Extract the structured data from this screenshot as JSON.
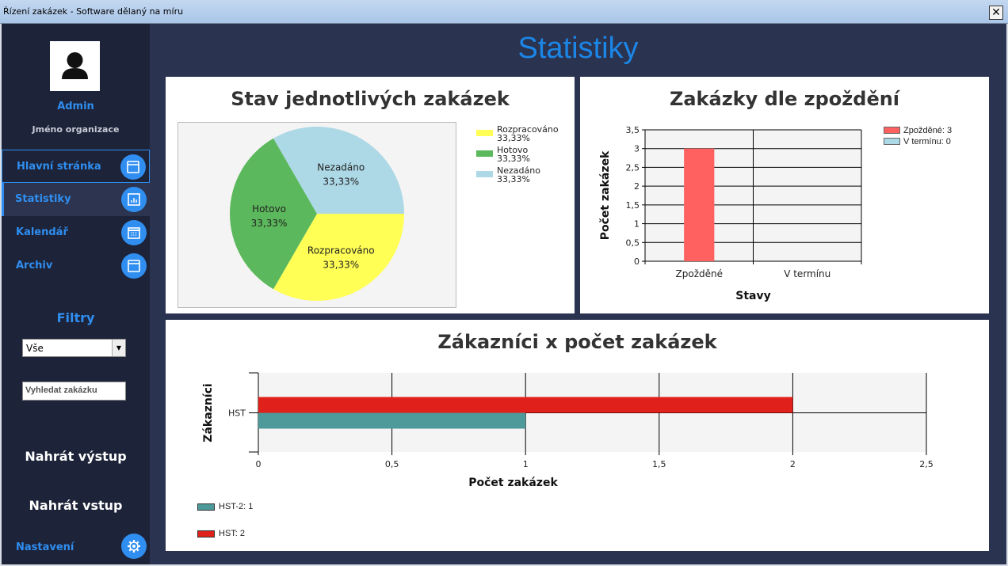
{
  "window": {
    "title": "Řízení zakázek - Software dělaný na míru",
    "close": "✕"
  },
  "sidebar": {
    "username": "Admin",
    "organization": "Jméno organizace",
    "nav": [
      {
        "label": "Hlavní stránka",
        "icon": "window-icon"
      },
      {
        "label": "Statistiky",
        "icon": "chart-icon"
      },
      {
        "label": "Kalendář",
        "icon": "calendar-icon"
      },
      {
        "label": "Archiv",
        "icon": "archive-icon"
      }
    ],
    "filters_title": "Filtry",
    "filter_select": "Vše",
    "search_placeholder": "Vyhledat zakázku",
    "upload_output": "Nahrát výstup",
    "upload_input": "Nahrát vstup",
    "settings": "Nastavení"
  },
  "main": {
    "title": "Statistiky"
  },
  "colors": {
    "accent": "#2f8ef0",
    "sidebar_bg": "#1d2339",
    "main_bg": "#2a3350"
  },
  "chart_data": [
    {
      "type": "pie",
      "title": "Stav jednotlivých zakázek",
      "slices": [
        {
          "label": "Rozpracováno",
          "percent": "33,33%",
          "value": 1,
          "color": "#ffff55"
        },
        {
          "label": "Hotovo",
          "percent": "33,33%",
          "value": 1,
          "color": "#5cb85c"
        },
        {
          "label": "Nezadáno",
          "percent": "33,33%",
          "value": 1,
          "color": "#add8e6"
        }
      ]
    },
    {
      "type": "bar",
      "title": "Zakázky dle zpoždění",
      "categories": [
        "Zpožděné",
        "V termínu"
      ],
      "values": [
        3,
        0
      ],
      "colors": [
        "#ff6060",
        "#add8e6"
      ],
      "xlabel": "Stavy",
      "ylabel": "Počet zakázek",
      "ylim": [
        0,
        3.5
      ],
      "yticks": [
        "0",
        "0,5",
        "1",
        "1,5",
        "2",
        "2,5",
        "3",
        "3,5"
      ],
      "legend": [
        "Zpožděné: 3",
        "V termínu: 0"
      ]
    },
    {
      "type": "bar",
      "orientation": "horizontal",
      "title": "Zákazníci x počet zakázek",
      "categories": [
        "HST"
      ],
      "series": [
        {
          "name": "HST",
          "values": [
            2
          ],
          "color": "#e0201a",
          "legend": "HST: 2"
        },
        {
          "name": "HST-2",
          "values": [
            1
          ],
          "color": "#4e9a9a",
          "legend": "HST-2: 1"
        }
      ],
      "xlabel": "Počet zakázek",
      "ylabel": "Zákazníci",
      "xlim": [
        0,
        2.5
      ],
      "xticks": [
        "0",
        "0,5",
        "1",
        "1,5",
        "2",
        "2,5"
      ]
    }
  ]
}
